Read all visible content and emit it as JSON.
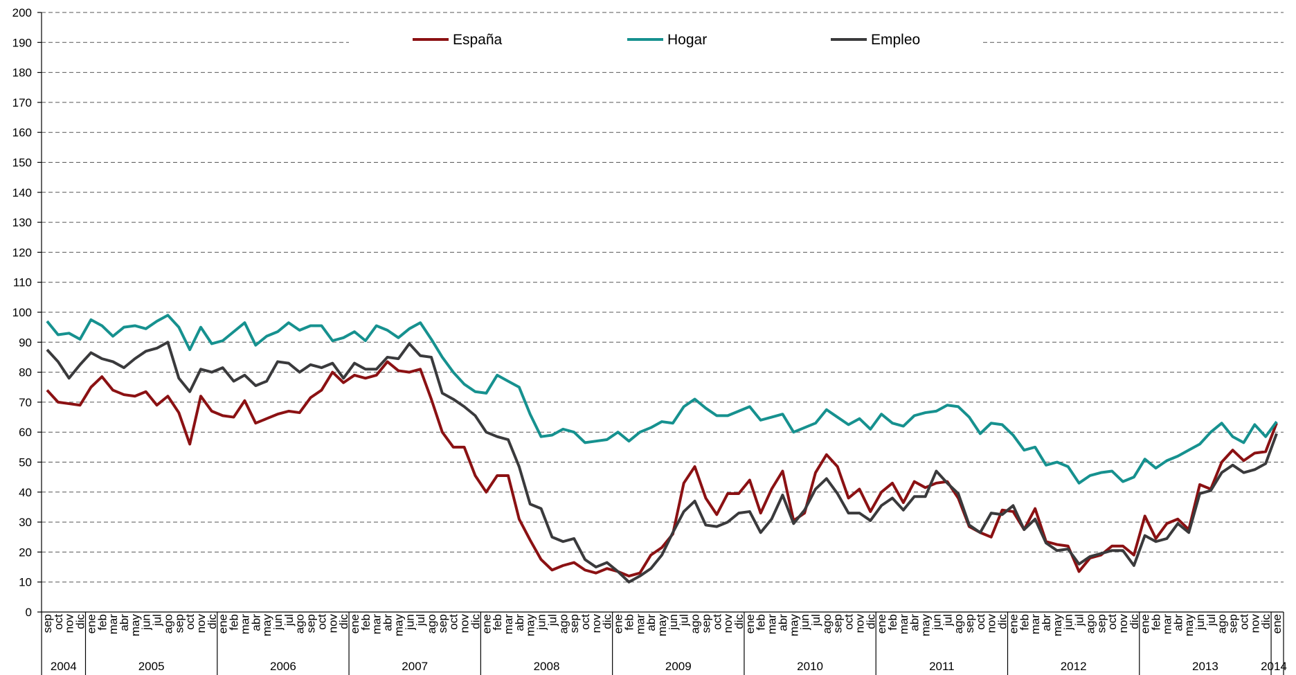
{
  "chart_data": {
    "type": "line",
    "categories": [
      "sep",
      "oct",
      "nov",
      "dic",
      "ene",
      "feb",
      "mar",
      "abr",
      "may",
      "jun",
      "jul",
      "ago",
      "sep",
      "oct",
      "nov",
      "dic",
      "ene",
      "feb",
      "mar",
      "abr",
      "may",
      "jun",
      "jul",
      "ago",
      "sep",
      "oct",
      "nov",
      "dic",
      "ene",
      "feb",
      "mar",
      "abr",
      "may",
      "jun",
      "jul",
      "ago",
      "sep",
      "oct",
      "nov",
      "dic",
      "ene",
      "feb",
      "mar",
      "abr",
      "may",
      "jun",
      "jul",
      "ago",
      "sep",
      "oct",
      "nov",
      "dic",
      "ene",
      "feb",
      "mar",
      "abr",
      "may",
      "jun",
      "jul",
      "ago",
      "sep",
      "oct",
      "nov",
      "dic",
      "ene",
      "feb",
      "mar",
      "abr",
      "may",
      "jun",
      "jul",
      "ago",
      "sep",
      "oct",
      "nov",
      "dic",
      "ene",
      "feb",
      "mar",
      "abr",
      "may",
      "jun",
      "jul",
      "ago",
      "sep",
      "oct",
      "nov",
      "dic",
      "ene",
      "feb",
      "mar",
      "abr",
      "may",
      "jun",
      "jul",
      "ago",
      "sep",
      "oct",
      "nov",
      "dic",
      "ene",
      "feb",
      "mar",
      "abr",
      "may",
      "jun",
      "jul",
      "ago",
      "sep",
      "oct",
      "nov",
      "dic",
      "ene"
    ],
    "years": [
      "2004",
      "2005",
      "2006",
      "2007",
      "2008",
      "2009",
      "2010",
      "2011",
      "2012",
      "2013",
      "2014"
    ],
    "series": [
      {
        "name": "España",
        "color": "#8b1113",
        "values": [
          74,
          70,
          69.5,
          69,
          75,
          78.5,
          74,
          72.5,
          72,
          73.5,
          69,
          72,
          66.5,
          56,
          72,
          67,
          65.5,
          65,
          70.5,
          63,
          64.5,
          66,
          67,
          66.5,
          71.5,
          74,
          80,
          76.5,
          79,
          78,
          79,
          83.5,
          80.5,
          80,
          81,
          71,
          60,
          55,
          55,
          45.5,
          40,
          45.5,
          45.5,
          31,
          24,
          17.5,
          14,
          15.5,
          16.5,
          14,
          13,
          14.5,
          13.5,
          12,
          13,
          19,
          21.5,
          26,
          43,
          48.5,
          38,
          32.5,
          39.5,
          39.5,
          44,
          33,
          41,
          47,
          30.5,
          33,
          46.5,
          52.5,
          48.5,
          38,
          41,
          33.5,
          40,
          43,
          36.5,
          43.5,
          41.5,
          43,
          43.5,
          38,
          28.5,
          26.5,
          25,
          34,
          33.5,
          27.5,
          34.5,
          23.5,
          22.5,
          22,
          13.5,
          18,
          19,
          22,
          22,
          19,
          32,
          24.5,
          29.5,
          31,
          27.5,
          42.5,
          41,
          50,
          54,
          50.5,
          53,
          53.5,
          63
        ]
      },
      {
        "name": "Hogar",
        "color": "#16918f",
        "values": [
          97,
          92.5,
          93,
          91,
          97.5,
          95.5,
          92,
          95,
          95.5,
          94.5,
          97,
          99,
          95,
          87.5,
          95,
          89.5,
          90.5,
          93.5,
          96.5,
          89,
          92,
          93.5,
          96.5,
          94,
          95.5,
          95.5,
          90.5,
          91.5,
          93.5,
          90.5,
          95.5,
          94,
          91.5,
          94.5,
          96.5,
          91,
          85,
          80,
          76,
          73.5,
          73,
          79,
          77,
          75,
          66,
          58.5,
          59,
          61,
          60,
          56.5,
          57,
          57.5,
          60,
          57,
          60,
          61.5,
          63.5,
          63,
          68.5,
          71,
          68,
          65.5,
          65.5,
          67,
          68.5,
          64,
          65,
          66,
          60,
          61.5,
          63,
          67.5,
          65,
          62.5,
          64.5,
          61,
          66,
          63,
          62,
          65.5,
          66.5,
          67,
          69,
          68.5,
          65,
          59.5,
          63,
          62.5,
          59,
          54,
          55,
          49,
          50,
          48.5,
          43,
          45.5,
          46.5,
          47,
          43.5,
          45,
          51,
          48,
          50.5,
          52,
          54,
          56,
          60,
          63,
          58.5,
          56.5,
          62.5,
          58.5,
          63.5
        ]
      },
      {
        "name": "Empleo",
        "color": "#3a3a3c",
        "values": [
          87.5,
          83.5,
          78,
          82.5,
          86.5,
          84.5,
          83.5,
          81.5,
          84.5,
          87,
          88,
          90,
          78,
          73.5,
          81,
          80,
          81.5,
          77,
          79,
          75.5,
          77,
          83.5,
          83,
          80,
          82.5,
          81.5,
          83,
          78,
          83,
          81,
          81,
          85,
          84.5,
          89.5,
          85.5,
          85,
          73,
          71,
          68.5,
          65.5,
          60,
          58.5,
          57.5,
          48.5,
          36,
          34.5,
          25,
          23.5,
          24.5,
          17.5,
          15,
          16.5,
          13.5,
          10,
          12,
          14.5,
          19,
          26.5,
          33.5,
          37,
          29,
          28.5,
          30,
          33,
          33.5,
          26.5,
          31,
          39,
          29.5,
          34,
          41,
          44.5,
          39.5,
          33,
          33,
          30.5,
          35.5,
          38,
          34,
          38.5,
          38.5,
          47,
          43,
          39.5,
          29,
          26.5,
          33,
          32.5,
          35.5,
          27.5,
          31,
          23,
          20.5,
          21,
          16,
          18.5,
          19.5,
          20.5,
          20.5,
          15.5,
          25.5,
          23.5,
          24.5,
          29.5,
          26.5,
          39.5,
          40.5,
          46.5,
          49,
          46.5,
          47.5,
          49.5,
          59.5
        ]
      }
    ],
    "ylim": [
      0,
      200
    ],
    "yticks": [
      0,
      10,
      20,
      30,
      40,
      50,
      60,
      70,
      80,
      90,
      100,
      110,
      120,
      130,
      140,
      150,
      160,
      170,
      180,
      190,
      200
    ],
    "grid": true,
    "legend": "top"
  }
}
